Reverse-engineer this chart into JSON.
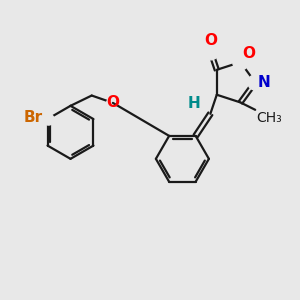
{
  "bg_color": "#e8e8e8",
  "bond_color": "#1a1a1a",
  "bond_width": 1.6,
  "atom_colors": {
    "O": "#ff0000",
    "N": "#0000cc",
    "Br": "#cc6600",
    "H": "#008b8b"
  },
  "font_size_atoms": 11,
  "font_size_methyl": 10,
  "fig_size": [
    3.0,
    3.0
  ],
  "dpi": 100,
  "xlim": [
    0,
    10
  ],
  "ylim": [
    0,
    10
  ]
}
